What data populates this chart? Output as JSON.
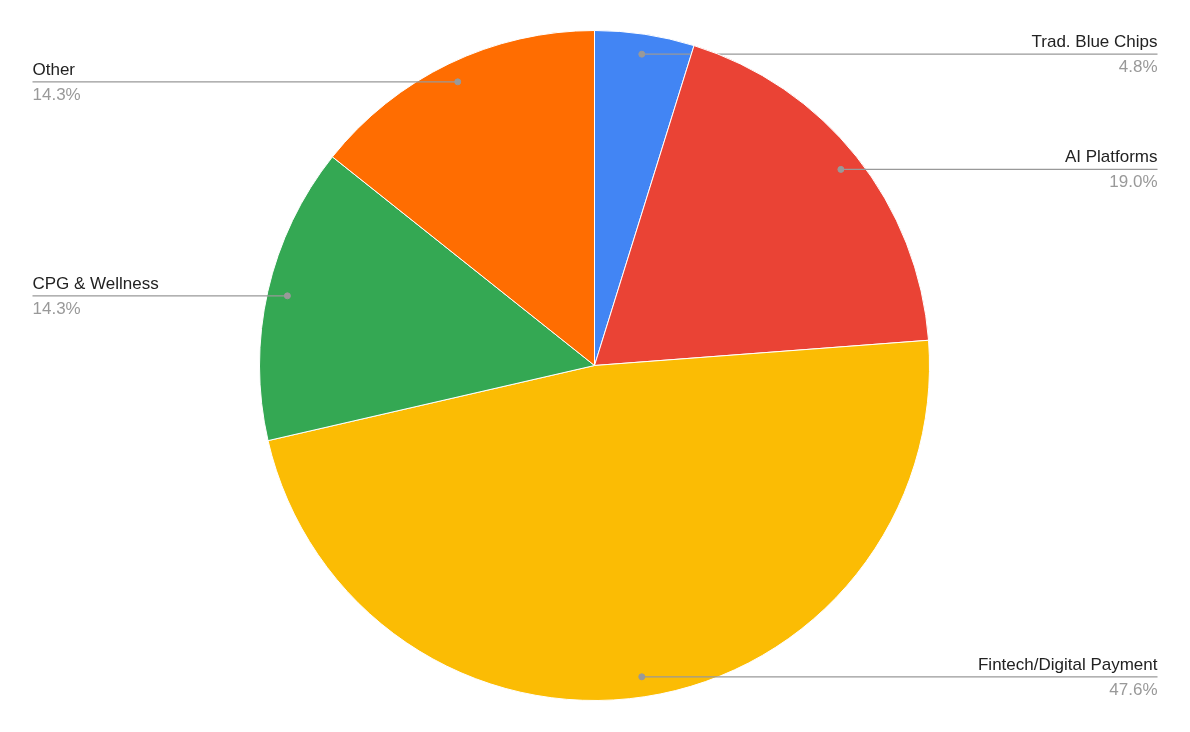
{
  "chart_data": {
    "type": "pie",
    "categories": [
      "Trad. Blue Chips",
      "AI Platforms",
      "Fintech/Digital Payment",
      "CPG & Wellness",
      "Other"
    ],
    "values": [
      4.8,
      19.0,
      47.6,
      14.3,
      14.3
    ],
    "value_labels": [
      "4.8%",
      "19.0%",
      "47.6%",
      "14.3%",
      "14.3%"
    ],
    "colors": [
      "#4285f4",
      "#ea4335",
      "#fbbc04",
      "#34a853",
      "#ff6d01"
    ]
  }
}
